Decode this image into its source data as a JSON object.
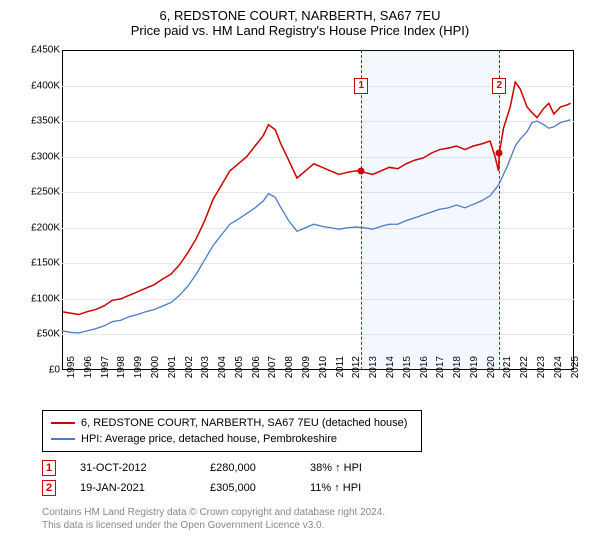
{
  "title_line1": "6, REDSTONE COURT, NARBERTH, SA67 7EU",
  "title_line2": "Price paid vs. HM Land Registry's House Price Index (HPI)",
  "chart": {
    "type": "line",
    "x_range": [
      1995,
      2025.5
    ],
    "y_range": [
      0,
      450
    ],
    "y_ticks": [
      0,
      50,
      100,
      150,
      200,
      250,
      300,
      350,
      400,
      450
    ],
    "y_tick_labels": [
      "£0",
      "£50K",
      "£100K",
      "£150K",
      "£200K",
      "£250K",
      "£300K",
      "£350K",
      "£400K",
      "£450K"
    ],
    "x_ticks": [
      1995,
      1996,
      1997,
      1998,
      1999,
      2000,
      2001,
      2002,
      2003,
      2004,
      2005,
      2006,
      2007,
      2008,
      2009,
      2010,
      2011,
      2012,
      2013,
      2014,
      2015,
      2016,
      2017,
      2018,
      2019,
      2020,
      2021,
      2022,
      2023,
      2024,
      2025
    ],
    "grid_color": "#e6e6e6",
    "background_color": "#ffffff",
    "shade_range": [
      2012.83,
      2021.05
    ],
    "shade_color": "rgba(100,149,237,0.08)",
    "vlines": [
      2012.83,
      2021.05
    ],
    "vline_color": "#cc0000",
    "markers": [
      {
        "n": "1",
        "x": 2012.83,
        "y_box": 400,
        "dot_x": 2012.83,
        "dot_y": 280
      },
      {
        "n": "2",
        "x": 2021.05,
        "y_box": 400,
        "dot_x": 2021.05,
        "dot_y": 305
      }
    ],
    "series": [
      {
        "name": "price_paid",
        "label": "6, REDSTONE COURT, NARBERTH, SA67 7EU (detached house)",
        "color": "#cc0000",
        "width": 1.5,
        "points": [
          [
            1995,
            82
          ],
          [
            1995.5,
            80
          ],
          [
            1996,
            78
          ],
          [
            1996.5,
            82
          ],
          [
            1997,
            85
          ],
          [
            1997.5,
            90
          ],
          [
            1998,
            98
          ],
          [
            1998.5,
            100
          ],
          [
            1999,
            105
          ],
          [
            1999.5,
            110
          ],
          [
            2000,
            115
          ],
          [
            2000.5,
            120
          ],
          [
            2001,
            128
          ],
          [
            2001.5,
            135
          ],
          [
            2002,
            148
          ],
          [
            2002.5,
            165
          ],
          [
            2003,
            185
          ],
          [
            2003.5,
            210
          ],
          [
            2004,
            240
          ],
          [
            2004.5,
            260
          ],
          [
            2005,
            280
          ],
          [
            2005.5,
            290
          ],
          [
            2006,
            300
          ],
          [
            2006.5,
            315
          ],
          [
            2007,
            330
          ],
          [
            2007.3,
            345
          ],
          [
            2007.7,
            338
          ],
          [
            2008,
            320
          ],
          [
            2008.5,
            295
          ],
          [
            2009,
            270
          ],
          [
            2009.5,
            280
          ],
          [
            2010,
            290
          ],
          [
            2010.5,
            285
          ],
          [
            2011,
            280
          ],
          [
            2011.5,
            275
          ],
          [
            2012,
            278
          ],
          [
            2012.5,
            280
          ],
          [
            2012.83,
            280
          ],
          [
            2013,
            278
          ],
          [
            2013.5,
            275
          ],
          [
            2014,
            280
          ],
          [
            2014.5,
            285
          ],
          [
            2015,
            283
          ],
          [
            2015.5,
            290
          ],
          [
            2016,
            295
          ],
          [
            2016.5,
            298
          ],
          [
            2017,
            305
          ],
          [
            2017.5,
            310
          ],
          [
            2018,
            312
          ],
          [
            2018.5,
            315
          ],
          [
            2019,
            310
          ],
          [
            2019.5,
            315
          ],
          [
            2020,
            318
          ],
          [
            2020.5,
            322
          ],
          [
            2020.8,
            300
          ],
          [
            2021,
            280
          ],
          [
            2021.05,
            305
          ],
          [
            2021.3,
            340
          ],
          [
            2021.7,
            370
          ],
          [
            2022,
            405
          ],
          [
            2022.3,
            395
          ],
          [
            2022.7,
            370
          ],
          [
            2023,
            362
          ],
          [
            2023.3,
            355
          ],
          [
            2023.7,
            368
          ],
          [
            2024,
            375
          ],
          [
            2024.3,
            360
          ],
          [
            2024.7,
            370
          ],
          [
            2025,
            372
          ],
          [
            2025.3,
            375
          ]
        ]
      },
      {
        "name": "hpi",
        "label": "HPI: Average price, detached house, Pembrokeshire",
        "color": "#4a7bc8",
        "width": 1.3,
        "points": [
          [
            1995,
            55
          ],
          [
            1995.5,
            53
          ],
          [
            1996,
            52
          ],
          [
            1996.5,
            55
          ],
          [
            1997,
            58
          ],
          [
            1997.5,
            62
          ],
          [
            1998,
            68
          ],
          [
            1998.5,
            70
          ],
          [
            1999,
            75
          ],
          [
            1999.5,
            78
          ],
          [
            2000,
            82
          ],
          [
            2000.5,
            85
          ],
          [
            2001,
            90
          ],
          [
            2001.5,
            95
          ],
          [
            2002,
            105
          ],
          [
            2002.5,
            118
          ],
          [
            2003,
            135
          ],
          [
            2003.5,
            155
          ],
          [
            2004,
            175
          ],
          [
            2004.5,
            190
          ],
          [
            2005,
            205
          ],
          [
            2005.5,
            212
          ],
          [
            2006,
            220
          ],
          [
            2006.5,
            228
          ],
          [
            2007,
            238
          ],
          [
            2007.3,
            248
          ],
          [
            2007.7,
            243
          ],
          [
            2008,
            230
          ],
          [
            2008.5,
            210
          ],
          [
            2009,
            195
          ],
          [
            2009.5,
            200
          ],
          [
            2010,
            205
          ],
          [
            2010.5,
            202
          ],
          [
            2011,
            200
          ],
          [
            2011.5,
            198
          ],
          [
            2012,
            200
          ],
          [
            2012.5,
            201
          ],
          [
            2013,
            200
          ],
          [
            2013.5,
            198
          ],
          [
            2014,
            202
          ],
          [
            2014.5,
            205
          ],
          [
            2015,
            205
          ],
          [
            2015.5,
            210
          ],
          [
            2016,
            214
          ],
          [
            2016.5,
            218
          ],
          [
            2017,
            222
          ],
          [
            2017.5,
            226
          ],
          [
            2018,
            228
          ],
          [
            2018.5,
            232
          ],
          [
            2019,
            228
          ],
          [
            2019.5,
            233
          ],
          [
            2020,
            238
          ],
          [
            2020.5,
            245
          ],
          [
            2021,
            260
          ],
          [
            2021.5,
            285
          ],
          [
            2022,
            315
          ],
          [
            2022.3,
            325
          ],
          [
            2022.7,
            335
          ],
          [
            2023,
            348
          ],
          [
            2023.3,
            350
          ],
          [
            2023.7,
            345
          ],
          [
            2024,
            340
          ],
          [
            2024.3,
            342
          ],
          [
            2024.7,
            348
          ],
          [
            2025,
            350
          ],
          [
            2025.3,
            352
          ]
        ]
      }
    ]
  },
  "legend": {
    "items": [
      {
        "color": "#cc0000",
        "label": "6, REDSTONE COURT, NARBERTH, SA67 7EU (detached house)"
      },
      {
        "color": "#4a7bc8",
        "label": "HPI: Average price, detached house, Pembrokeshire"
      }
    ]
  },
  "sales": [
    {
      "n": "1",
      "date": "31-OCT-2012",
      "price": "£280,000",
      "pct": "38% ↑ HPI"
    },
    {
      "n": "2",
      "date": "19-JAN-2021",
      "price": "£305,000",
      "pct": "11% ↑ HPI"
    }
  ],
  "footnote_line1": "Contains HM Land Registry data © Crown copyright and database right 2024.",
  "footnote_line2": "This data is licensed under the Open Government Licence v3.0."
}
